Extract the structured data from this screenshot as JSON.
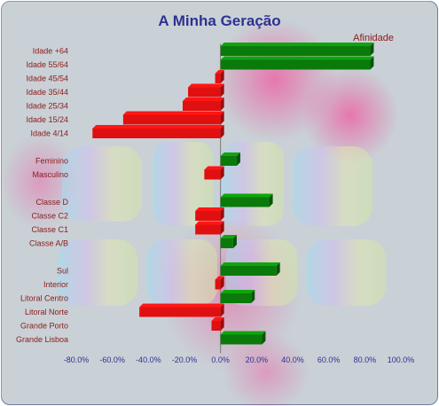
{
  "chart_data": {
    "type": "bar",
    "orientation": "horizontal",
    "title": "A Minha Geração",
    "legend": "Afinidade",
    "legend_position": "top-right",
    "positive_color": "#0a7a0a",
    "negative_color": "#e01010",
    "xlim": [
      -80,
      100
    ],
    "x_ticks": [
      "-80.0%",
      "-60.0%",
      "-40.0%",
      "-20.0%",
      "0.0%",
      "20.0%",
      "40.0%",
      "60.0%",
      "80.0%",
      "100.0%"
    ],
    "x_tick_values": [
      -80,
      -60,
      -40,
      -20,
      0,
      20,
      40,
      60,
      80,
      100
    ],
    "categories": [
      "Idade +64",
      "Idade 55/64",
      "Idade 45/54",
      "Idade 35/44",
      "Idade 25/34",
      "Idade 15/24",
      "Idade 4/14",
      "",
      "Feminino",
      "Masculino",
      "",
      "Classe D",
      "Classe C2",
      "Classe C1",
      "Classe A/B",
      "",
      "Sul",
      "Interior",
      "Litoral Centro",
      "Litoral Norte",
      "Grande Porto",
      "Grande Lisboa"
    ],
    "values": [
      83,
      83,
      -3,
      -18,
      -21,
      -54,
      -71,
      null,
      9,
      -9,
      null,
      27,
      -14,
      -14,
      7,
      null,
      31,
      -3,
      17,
      -45,
      -5,
      23
    ]
  }
}
